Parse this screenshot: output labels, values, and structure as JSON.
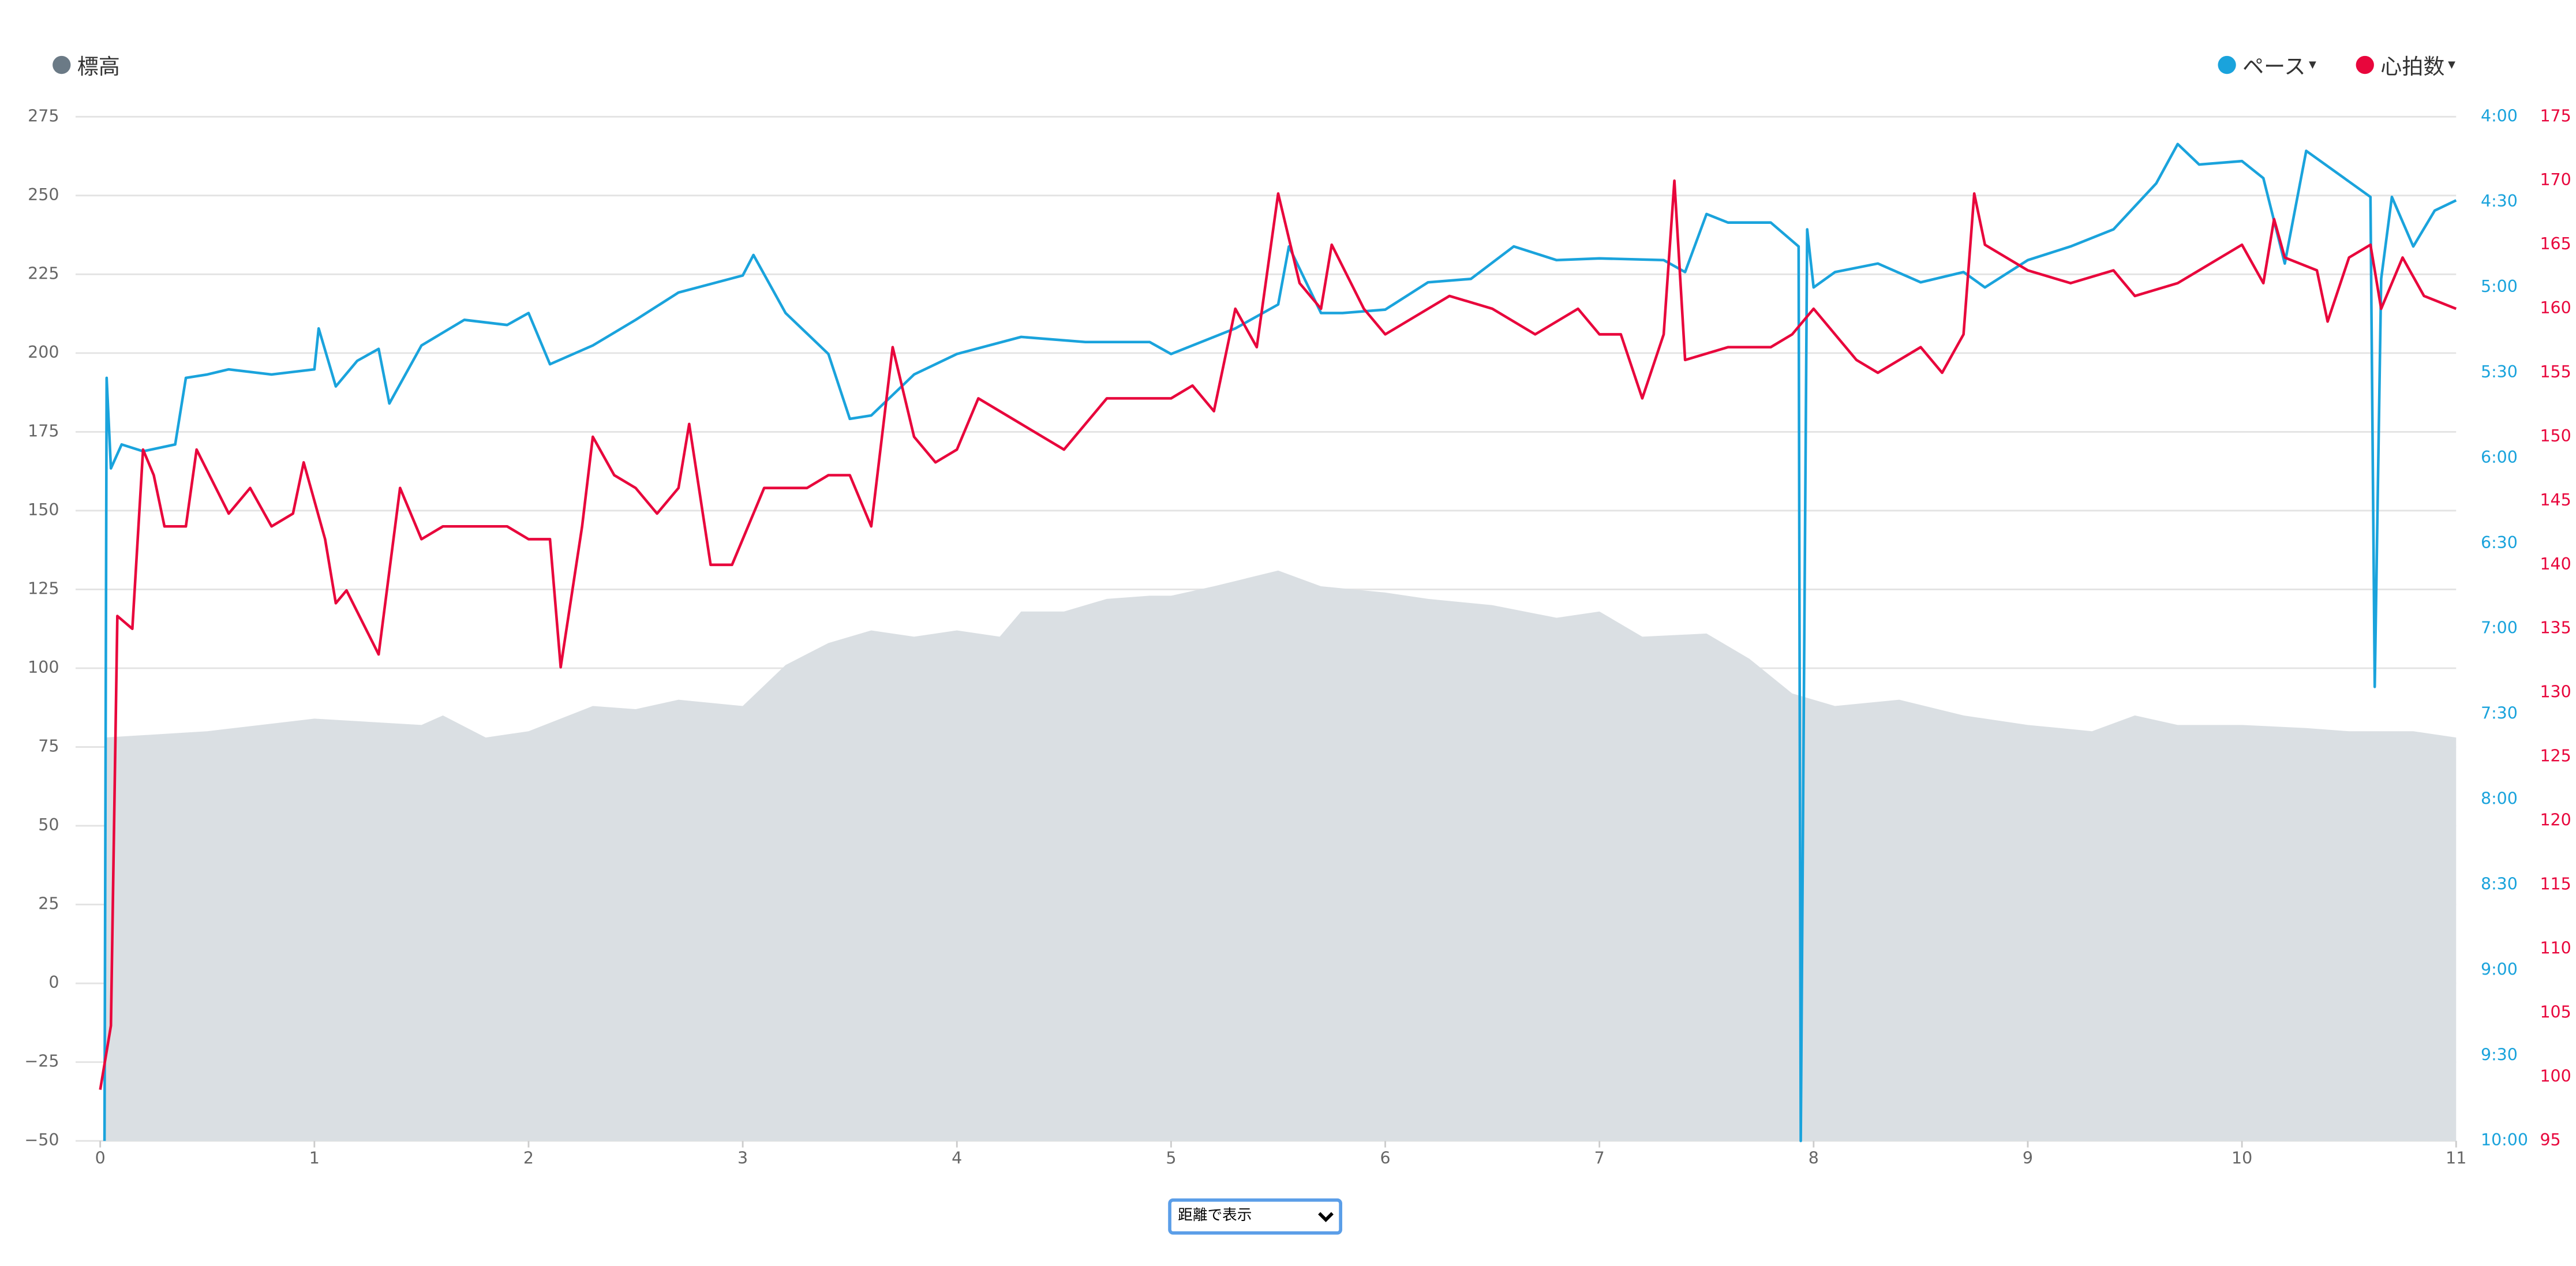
{
  "chart_data": {
    "type": "multi-axis-line",
    "legend": [
      {
        "name": "標高",
        "color": "#6b7a86"
      },
      {
        "name": "ペース",
        "color": "#1aa3dc"
      },
      {
        "name": "心拍数",
        "color": "#e8063c"
      }
    ],
    "xlim": [
      0,
      11
    ],
    "xticks": [
      0,
      1,
      2,
      3,
      4,
      5,
      6,
      7,
      8,
      9,
      10,
      11
    ],
    "ylim": [
      -50,
      275
    ],
    "yticks": [
      {
        "value": -50,
        "label": "−50"
      },
      {
        "value": -25,
        "label": "−25"
      },
      0,
      25,
      50,
      75,
      100,
      125,
      150,
      175,
      200,
      225,
      250,
      275
    ],
    "y2lim": [
      10,
      4
    ],
    "y2ticks": [
      {
        "value": 10,
        "label": "10:00"
      },
      {
        "value": 9.5,
        "label": "9:30"
      },
      {
        "value": 9,
        "label": "9:00"
      },
      {
        "value": 8.5,
        "label": "8:30"
      },
      {
        "value": 8,
        "label": "8:00"
      },
      {
        "value": 7.5,
        "label": "7:30"
      },
      {
        "value": 7,
        "label": "7:00"
      },
      {
        "value": 6.5,
        "label": "6:30"
      },
      {
        "value": 6,
        "label": "6:00"
      },
      {
        "value": 5.5,
        "label": "5:30"
      },
      {
        "value": 5,
        "label": "5:00"
      },
      {
        "value": 4.5,
        "label": "4:30"
      },
      {
        "value": 4,
        "label": "4:00"
      }
    ],
    "y3lim": [
      95,
      175
    ],
    "y3ticks": [
      95,
      100,
      105,
      110,
      115,
      120,
      125,
      130,
      135,
      140,
      145,
      150,
      155,
      160,
      165,
      170,
      175
    ],
    "grid": true,
    "series": [
      {
        "type": "area",
        "axis": "y",
        "color": "#dadfe3",
        "x": [
          0.02,
          0.5,
          1,
          1.5,
          1.6,
          1.8,
          2,
          2.3,
          2.5,
          2.7,
          3,
          3.2,
          3.4,
          3.6,
          3.8,
          4,
          4.2,
          4.3,
          4.5,
          4.7,
          4.9,
          5,
          5.2,
          5.5,
          5.7,
          6,
          6.2,
          6.5,
          6.8,
          7,
          7.2,
          7.5,
          7.7,
          7.9,
          8.1,
          8.4,
          8.7,
          9,
          9.3,
          9.5,
          9.7,
          10,
          10.3,
          10.5,
          10.8,
          11
        ],
        "values": [
          78,
          80,
          84,
          82,
          85,
          78,
          80,
          88,
          87,
          90,
          88,
          101,
          108,
          112,
          110,
          112,
          110,
          118,
          118,
          122,
          123,
          123,
          126,
          131,
          126,
          124,
          122,
          120,
          116,
          118,
          110,
          111,
          103,
          92,
          88,
          90,
          85,
          82,
          80,
          85,
          82,
          82,
          81,
          80,
          80,
          78
        ]
      },
      {
        "type": "line",
        "axis": "y2",
        "color": "#1aa3dc",
        "x": [
          0.02,
          0.03,
          0.05,
          0.1,
          0.2,
          0.35,
          0.4,
          0.5,
          0.6,
          0.8,
          1.0,
          1.02,
          1.1,
          1.2,
          1.3,
          1.35,
          1.5,
          1.7,
          1.9,
          2.0,
          2.1,
          2.3,
          2.5,
          2.7,
          3.0,
          3.05,
          3.2,
          3.4,
          3.5,
          3.6,
          3.8,
          4.0,
          4.3,
          4.6,
          4.9,
          5.0,
          5.3,
          5.5,
          5.55,
          5.7,
          5.8,
          6.0,
          6.2,
          6.4,
          6.6,
          6.8,
          7.0,
          7.3,
          7.4,
          7.5,
          7.6,
          7.8,
          7.93,
          7.94,
          7.97,
          8.0,
          8.1,
          8.3,
          8.5,
          8.7,
          8.8,
          9.0,
          9.2,
          9.4,
          9.6,
          9.7,
          9.8,
          10.0,
          10.1,
          10.2,
          10.3,
          10.5,
          10.6,
          10.62,
          10.65,
          10.7,
          10.8,
          10.9,
          11
        ],
        "values": [
          10,
          5.53,
          6.06,
          5.92,
          5.96,
          5.92,
          5.53,
          5.51,
          5.48,
          5.51,
          5.48,
          5.24,
          5.58,
          5.43,
          5.36,
          5.68,
          5.34,
          5.19,
          5.22,
          5.15,
          5.45,
          5.34,
          5.19,
          5.03,
          4.93,
          4.81,
          5.15,
          5.39,
          5.77,
          5.75,
          5.51,
          5.39,
          5.29,
          5.32,
          5.32,
          5.39,
          5.24,
          5.1,
          4.76,
          5.15,
          5.15,
          5.13,
          4.97,
          4.95,
          4.76,
          4.84,
          4.83,
          4.84,
          4.91,
          4.57,
          4.62,
          4.62,
          4.76,
          10,
          4.66,
          5.0,
          4.91,
          4.86,
          4.97,
          4.91,
          5.0,
          4.84,
          4.76,
          4.66,
          4.39,
          4.16,
          4.28,
          4.26,
          4.36,
          4.86,
          4.2,
          4.38,
          4.47,
          7.34,
          4.95,
          4.47,
          4.76,
          4.55,
          4.49
        ]
      },
      {
        "type": "line",
        "axis": "y3",
        "color": "#e8063c",
        "x": [
          0.0,
          0.05,
          0.08,
          0.15,
          0.2,
          0.25,
          0.3,
          0.4,
          0.45,
          0.6,
          0.7,
          0.8,
          0.9,
          0.95,
          1.05,
          1.1,
          1.15,
          1.3,
          1.4,
          1.5,
          1.6,
          1.8,
          1.9,
          2.0,
          2.1,
          2.15,
          2.25,
          2.3,
          2.4,
          2.5,
          2.6,
          2.7,
          2.75,
          2.85,
          2.95,
          3.0,
          3.1,
          3.2,
          3.3,
          3.4,
          3.5,
          3.6,
          3.7,
          3.8,
          3.9,
          4.0,
          4.1,
          4.3,
          4.5,
          4.7,
          4.9,
          5.0,
          5.1,
          5.2,
          5.3,
          5.4,
          5.5,
          5.6,
          5.7,
          5.75,
          5.9,
          6.0,
          6.2,
          6.3,
          6.5,
          6.7,
          6.9,
          7.0,
          7.1,
          7.2,
          7.3,
          7.35,
          7.4,
          7.6,
          7.8,
          7.9,
          8.0,
          8.2,
          8.3,
          8.5,
          8.6,
          8.7,
          8.75,
          8.8,
          9.0,
          9.2,
          9.4,
          9.5,
          9.7,
          9.9,
          10.0,
          10.1,
          10.15,
          10.2,
          10.35,
          10.4,
          10.5,
          10.6,
          10.65,
          10.75,
          10.85,
          11.0
        ],
        "values": [
          99,
          104,
          136,
          135,
          149,
          147,
          143,
          143,
          149,
          144,
          146,
          143,
          144,
          148,
          142,
          137,
          138,
          133,
          146,
          142,
          143,
          143,
          143,
          142,
          142,
          132,
          143,
          150,
          147,
          146,
          144,
          146,
          151,
          140,
          140,
          142,
          146,
          146,
          146,
          147,
          147,
          143,
          157,
          150,
          148,
          149,
          153,
          151,
          149,
          153,
          153,
          153,
          154,
          152,
          160,
          157,
          169,
          162,
          160,
          165,
          160,
          158,
          160,
          161,
          160,
          158,
          160,
          158,
          158,
          153,
          158,
          170,
          156,
          157,
          157,
          158,
          160,
          156,
          155,
          157,
          155,
          158,
          169,
          165,
          163,
          162,
          163,
          161,
          162,
          164,
          165,
          162,
          167,
          164,
          163,
          159,
          164,
          165,
          160,
          164,
          161,
          160
        ]
      }
    ],
    "x_mode_select": "距離で表示"
  }
}
